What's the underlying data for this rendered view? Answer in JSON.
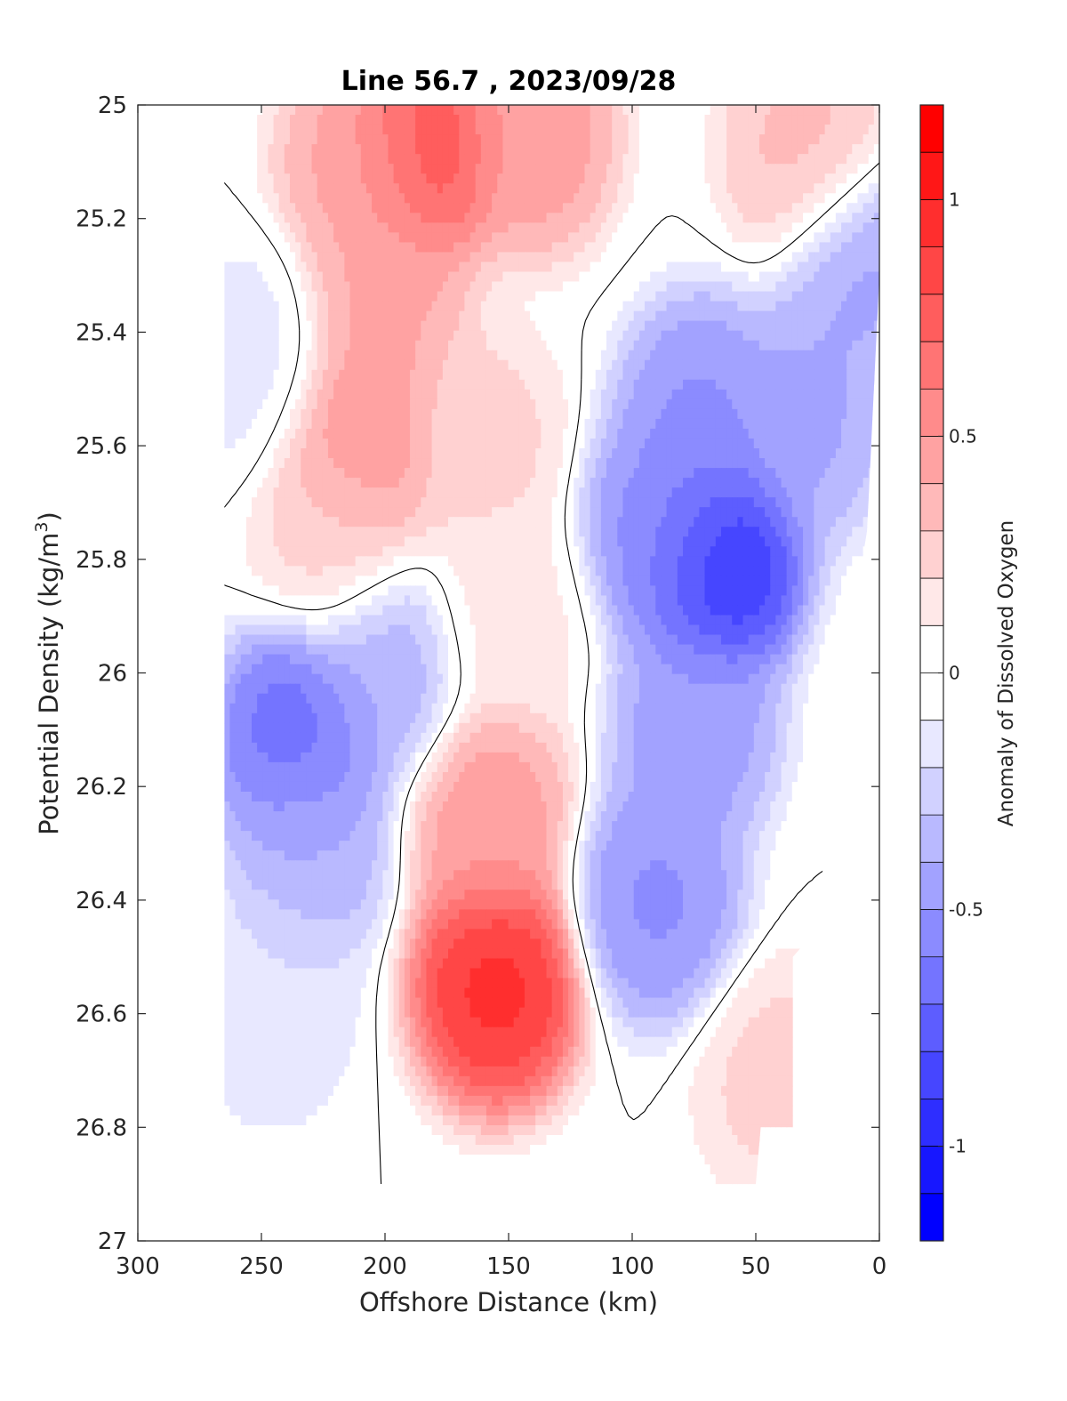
{
  "chart_data": {
    "type": "heatmap",
    "subtype": "filled-contour",
    "title": "Line 56.7 , 2023/09/28",
    "xlabel": "Offshore Distance (km)",
    "ylabel_main": "Potential Density (kg/m",
    "ylabel_sup": "3",
    "ylabel_end": ")",
    "xlim": [
      300,
      0
    ],
    "ylim": [
      25,
      27
    ],
    "x_reversed": true,
    "y_reversed": true,
    "x_ticks": [
      {
        "value": 300,
        "label": "300"
      },
      {
        "value": 250,
        "label": "250"
      },
      {
        "value": 200,
        "label": "200"
      },
      {
        "value": 150,
        "label": "150"
      },
      {
        "value": 100,
        "label": "100"
      },
      {
        "value": 50,
        "label": "50"
      },
      {
        "value": 0,
        "label": "0"
      }
    ],
    "y_ticks": [
      {
        "value": 25,
        "label": "25"
      },
      {
        "value": 25.2,
        "label": "25.2"
      },
      {
        "value": 25.4,
        "label": "25.4"
      },
      {
        "value": 25.6,
        "label": "25.6"
      },
      {
        "value": 25.8,
        "label": "25.8"
      },
      {
        "value": 26,
        "label": "26"
      },
      {
        "value": 26.2,
        "label": "26.2"
      },
      {
        "value": 26.4,
        "label": "26.4"
      },
      {
        "value": 26.6,
        "label": "26.6"
      },
      {
        "value": 26.8,
        "label": "26.8"
      },
      {
        "value": 27,
        "label": "27"
      }
    ],
    "colorbar": {
      "label": "Anomaly of Dissolved Oxygen",
      "range": [
        -1.2,
        1.2
      ],
      "step": 0.1,
      "ticks": [
        {
          "value": 1,
          "label": "1"
        },
        {
          "value": 0.5,
          "label": "0.5"
        },
        {
          "value": 0,
          "label": "0"
        },
        {
          "value": -0.5,
          "label": "-0.5"
        },
        {
          "value": -1,
          "label": "-1"
        }
      ],
      "colormap": "blue-white-red",
      "low_color": "#0000ff",
      "mid_color": "#ffffff",
      "high_color": "#ff0000"
    },
    "data_extent": {
      "x_max": 265,
      "x_min": 0
    },
    "zero_contour": true,
    "anomaly_centers": [
      {
        "x": 65,
        "y": 25.8,
        "value": -1.0
      },
      {
        "x": 72,
        "y": 25.55,
        "value": -0.55
      },
      {
        "x": 88,
        "y": 25.75,
        "value": -0.55
      },
      {
        "x": 75,
        "y": 26.1,
        "value": -0.5
      },
      {
        "x": 90,
        "y": 26.4,
        "value": -0.55
      },
      {
        "x": 30,
        "y": 25.55,
        "value": -0.45
      },
      {
        "x": 8,
        "y": 25.3,
        "value": -0.45
      },
      {
        "x": 235,
        "y": 26.12,
        "value": -0.72
      },
      {
        "x": 230,
        "y": 26.3,
        "value": -0.4
      },
      {
        "x": 200,
        "y": 26.0,
        "value": -0.4
      },
      {
        "x": 255,
        "y": 25.45,
        "value": -0.15
      },
      {
        "x": 245,
        "y": 26.58,
        "value": -0.2
      },
      {
        "x": 155,
        "y": 26.55,
        "value": 1.0
      },
      {
        "x": 158,
        "y": 26.25,
        "value": 0.5
      },
      {
        "x": 185,
        "y": 25.07,
        "value": 0.85
      },
      {
        "x": 210,
        "y": 25.1,
        "value": 0.45
      },
      {
        "x": 140,
        "y": 25.05,
        "value": 0.5
      },
      {
        "x": 210,
        "y": 25.6,
        "value": 0.55
      },
      {
        "x": 200,
        "y": 25.35,
        "value": 0.45
      },
      {
        "x": 220,
        "y": 25.75,
        "value": 0.25
      },
      {
        "x": 160,
        "y": 25.6,
        "value": 0.25
      },
      {
        "x": 150,
        "y": 25.9,
        "value": 0.15
      },
      {
        "x": 30,
        "y": 25.08,
        "value": 0.35
      },
      {
        "x": 40,
        "y": 26.72,
        "value": 0.25
      }
    ]
  }
}
